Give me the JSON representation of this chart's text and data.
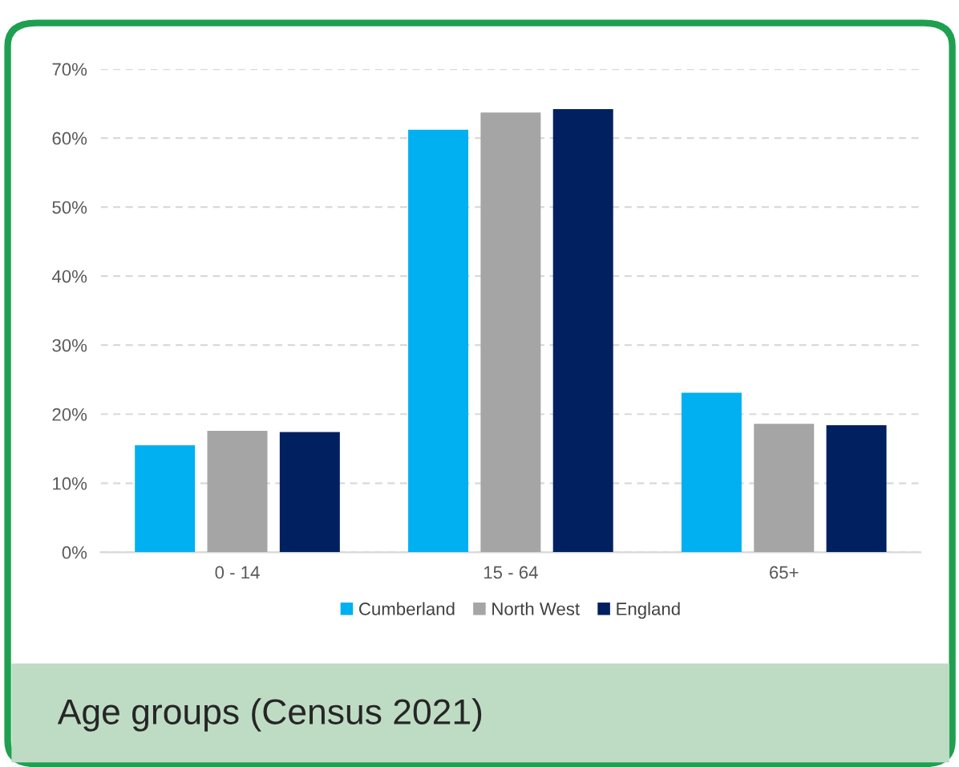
{
  "chart_data": {
    "type": "bar",
    "title": "Age groups (Census 2021)",
    "categories": [
      "0 - 14",
      "15 - 64",
      "65+"
    ],
    "series": [
      {
        "name": "Cumberland",
        "color": "#00b0f0",
        "values": [
          15.5,
          61.2,
          23.1
        ]
      },
      {
        "name": "North West",
        "color": "#a5a5a5",
        "values": [
          17.6,
          63.7,
          18.6
        ]
      },
      {
        "name": "England",
        "color": "#002060",
        "values": [
          17.4,
          64.2,
          18.4
        ]
      }
    ],
    "ylim": [
      0,
      70
    ],
    "yticks": [
      {
        "value": 0,
        "label": "0%"
      },
      {
        "value": 10,
        "label": "10%"
      },
      {
        "value": 20,
        "label": "20%"
      },
      {
        "value": 30,
        "label": "30%"
      },
      {
        "value": 40,
        "label": "40%"
      },
      {
        "value": 50,
        "label": "50%"
      },
      {
        "value": 60,
        "label": "60%"
      },
      {
        "value": 70,
        "label": "70%"
      }
    ],
    "grid": "y",
    "legend": "bottom"
  }
}
